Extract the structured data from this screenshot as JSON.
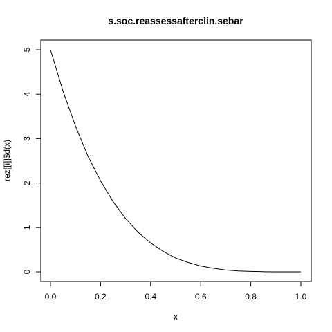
{
  "chart_data": {
    "type": "line",
    "title": "s.soc.reassessafterclin.sebar",
    "xlabel": "x",
    "ylabel": "rez[[i]]$d(x)",
    "xlim": [
      0,
      1
    ],
    "ylim": [
      0,
      5
    ],
    "x_ticks": [
      "0.0",
      "0.2",
      "0.4",
      "0.6",
      "0.8",
      "1.0"
    ],
    "y_ticks": [
      "0",
      "1",
      "2",
      "3",
      "4",
      "5"
    ],
    "grid": false,
    "series": [
      {
        "color": "#000000",
        "x": [
          0.0,
          0.05,
          0.1,
          0.15,
          0.2,
          0.25,
          0.3,
          0.35,
          0.4,
          0.45,
          0.5,
          0.55,
          0.6,
          0.65,
          0.7,
          0.75,
          0.8,
          0.85,
          0.9,
          0.95,
          1.0
        ],
        "y": [
          5.0,
          4.07,
          3.28,
          2.6,
          2.05,
          1.58,
          1.2,
          0.89,
          0.65,
          0.46,
          0.31,
          0.21,
          0.13,
          0.08,
          0.04,
          0.02,
          0.01,
          0.003,
          0.0005,
          0.0001,
          0.0
        ]
      }
    ]
  }
}
